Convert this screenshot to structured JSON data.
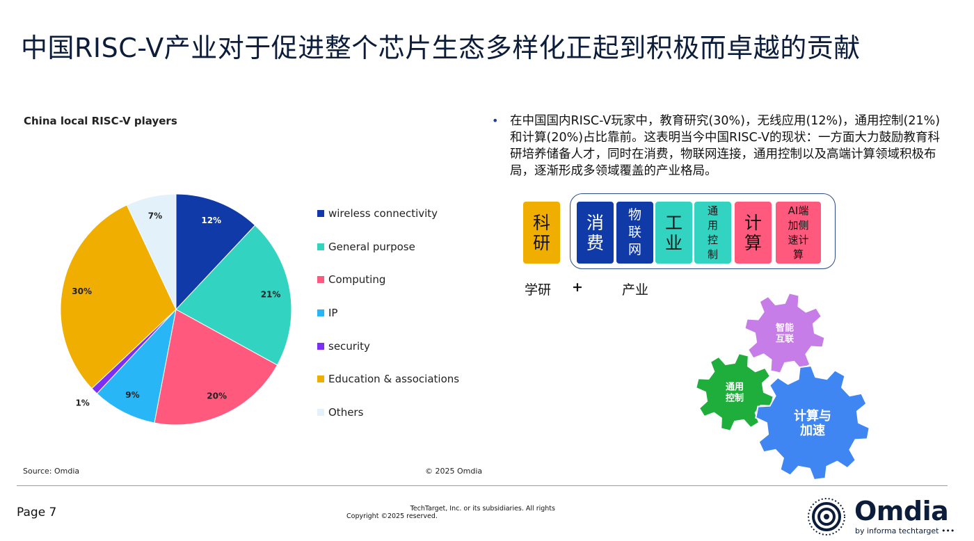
{
  "slide_title": "中国RISC-V产业对于促进整个芯片生态多样化正起到积极而卓越的贡献",
  "chart_data": {
    "type": "pie",
    "title": "China local RISC-V players",
    "slices": [
      {
        "name": "wireless connectivity",
        "value": 12,
        "label": "12%",
        "color": "#0f3aa8",
        "label_color": "#ffffff"
      },
      {
        "name": "General purpose",
        "value": 21,
        "label": "21%",
        "color": "#33d3c2",
        "label_color": "#222222"
      },
      {
        "name": "Computing",
        "value": 20,
        "label": "20%",
        "color": "#ff5a7d",
        "label_color": "#222222"
      },
      {
        "name": "IP",
        "value": 9,
        "label": "9%",
        "color": "#29b6f6",
        "label_color": "#222222"
      },
      {
        "name": "security",
        "value": 1,
        "label": "1%",
        "color": "#7b2ff7",
        "label_color": "#222222"
      },
      {
        "name": "Education & associations",
        "value": 30,
        "label": "30%",
        "color": "#f0ae00",
        "label_color": "#222222"
      },
      {
        "name": "Others",
        "value": 7,
        "label": "7%",
        "color": "#e3f2fa",
        "label_color": "#222222"
      }
    ],
    "legend_position": "right",
    "source": "Source: Omdia",
    "copyright": "© 2025 Omdia"
  },
  "bullet": {
    "marker": "•",
    "text": "在中国国内RISC-V玩家中，教育研究(30%)，无线应用(12%)，通用控制(21%)和计算(20%)占比靠前。这表明当今中国RISC-V的现状：一方面大力鼓励教育科研培养储备人才，同时在消费，物联网连接，通用控制以及高端计算领域积极布局，逐渐形成多领域覆盖的产业格局。"
  },
  "boxes": [
    {
      "name": "box-research",
      "lines": [
        "科",
        "研"
      ],
      "bg": "#f0ae00",
      "fg": "#111111"
    },
    {
      "name": "box-consumer",
      "lines": [
        "消",
        "费"
      ],
      "bg": "#0f3aa8",
      "fg": "#ffffff"
    },
    {
      "name": "box-iot",
      "lines": [
        "物",
        "联",
        "网"
      ],
      "bg": "#0f3aa8",
      "fg": "#ffffff"
    },
    {
      "name": "box-industry",
      "lines": [
        "工",
        "业"
      ],
      "bg": "#33d3c2",
      "fg": "#111111"
    },
    {
      "name": "box-general-control",
      "lines": [
        "通",
        "用",
        "控",
        "制"
      ],
      "bg": "#33d3c2",
      "fg": "#111111"
    },
    {
      "name": "box-computing",
      "lines": [
        "计",
        "算"
      ],
      "bg": "#ff5a7d",
      "fg": "#111111"
    },
    {
      "name": "box-ai-edge",
      "lines": [
        "AI端",
        "加侧",
        "速计",
        "算"
      ],
      "bg": "#ff5a7d",
      "fg": "#111111"
    }
  ],
  "captions": {
    "research": "学研",
    "plus": "+",
    "industry": "产业"
  },
  "gears": [
    {
      "name": "gear-smart-interconnect",
      "lines": [
        "智能",
        "互联"
      ],
      "color": "#c77de8"
    },
    {
      "name": "gear-general-control",
      "lines": [
        "通用",
        "控制"
      ],
      "color": "#1fae3c"
    },
    {
      "name": "gear-compute-accel",
      "lines": [
        "计算与",
        "加速"
      ],
      "color": "#3f86f2"
    }
  ],
  "footer": {
    "page": "Page 7",
    "legal_line1": "TechTarget, Inc. or its subsidiaries. All rights",
    "legal_line2": "Copyright ©2025 reserved.",
    "logo_word": "Omdia",
    "logo_sub": "by informa techtarget •••"
  }
}
